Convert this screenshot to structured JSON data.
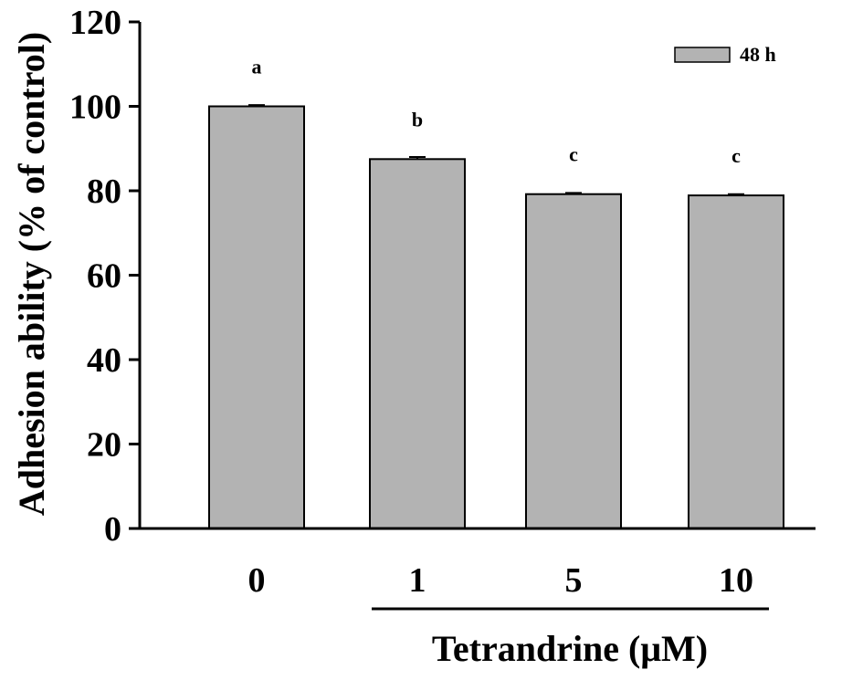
{
  "chart_data": {
    "type": "bar",
    "categories": [
      "0",
      "1",
      "5",
      "10"
    ],
    "series": [
      {
        "name": "48 h",
        "values": [
          100,
          87.5,
          79.2,
          78.9
        ],
        "errors": [
          0.3,
          0.5,
          0.3,
          0.3
        ]
      }
    ],
    "significance_labels": [
      "a",
      "b",
      "c",
      "c"
    ],
    "title": "",
    "xlabel": "Tetrandrine (μM)",
    "ylabel": "Adhesion ability (% of control)",
    "ylim": [
      0,
      120
    ],
    "yticks": [
      "0",
      "20",
      "40",
      "60",
      "80",
      "100",
      "120"
    ],
    "grid": false,
    "legend_position": "top-right",
    "bar_color": "#b3b3b3",
    "edge_color": "#000000"
  }
}
